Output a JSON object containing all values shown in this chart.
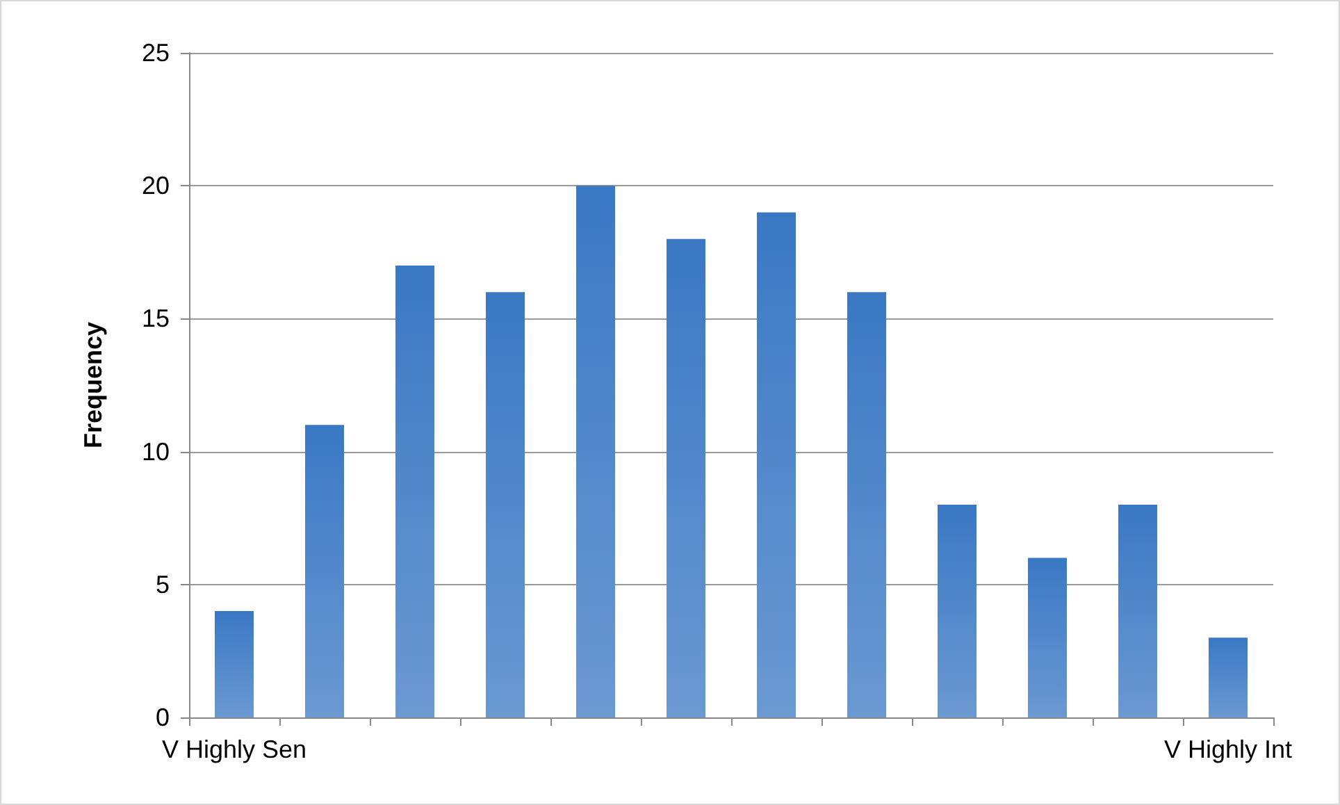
{
  "chart_data": {
    "type": "bar",
    "ylabel": "Frequency",
    "categories": [
      "V Highly Sen",
      null,
      null,
      null,
      null,
      null,
      null,
      null,
      null,
      null,
      null,
      "V Highly Int"
    ],
    "values": [
      4,
      11,
      17,
      16,
      20,
      18,
      19,
      16,
      8,
      6,
      8,
      3
    ],
    "color": "#3a78c4",
    "ylim": [
      0,
      25
    ],
    "yticks": [
      0,
      5,
      10,
      15,
      20,
      25
    ],
    "grid": "y"
  }
}
